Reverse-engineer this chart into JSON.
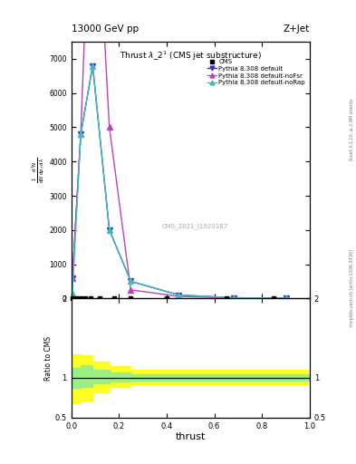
{
  "title_top": "13000 GeV pp",
  "title_right": "Z+Jet",
  "plot_title": "Thrust $\\lambda$_2$^1$ (CMS jet substructure)",
  "watermark": "CMS_2021_I1920187",
  "rivet_label": "Rivet 3.1.10, ≥ 2.8M events",
  "mcplots_label": "mcplots.cern.ch [arXiv:1306.3436]",
  "xlabel": "thrust",
  "ylabel_ratio": "Ratio to CMS",
  "cms_x": [
    0.005,
    0.02,
    0.04,
    0.06,
    0.08,
    0.12,
    0.18,
    0.25,
    0.4,
    0.65,
    0.85
  ],
  "pythia_default_x": [
    0.005,
    0.04,
    0.09,
    0.16,
    0.25,
    0.45,
    0.68,
    0.9
  ],
  "pythia_default_y": [
    600,
    4800,
    6800,
    2000,
    500,
    100,
    20,
    5
  ],
  "pythia_noFsr_x": [
    0.005,
    0.04,
    0.09,
    0.16,
    0.25,
    0.45,
    0.68,
    0.9
  ],
  "pythia_noFsr_y": [
    600,
    4800,
    14000,
    5000,
    250,
    60,
    10,
    2
  ],
  "pythia_noRap_x": [
    0.005,
    0.04,
    0.09,
    0.16,
    0.25,
    0.45,
    0.68,
    0.9
  ],
  "pythia_noRap_y": [
    150,
    4800,
    6800,
    2000,
    500,
    100,
    20,
    5
  ],
  "ylim_main": [
    0,
    7500
  ],
  "ylim_ratio": [
    0.5,
    2.0
  ],
  "xlim": [
    0.0,
    1.0
  ],
  "color_cms": "#000000",
  "color_default": "#3333cc",
  "color_noFsr": "#bb44bb",
  "color_noRap": "#44bbbb",
  "band_yellow_x": [
    0.0,
    0.04,
    0.09,
    0.16,
    0.25,
    0.45,
    0.65,
    1.0
  ],
  "band_yellow_lower": [
    0.68,
    0.72,
    0.82,
    0.88,
    0.92,
    0.92,
    0.92,
    0.92
  ],
  "band_yellow_upper": [
    1.3,
    1.28,
    1.2,
    1.15,
    1.1,
    1.1,
    1.1,
    1.1
  ],
  "band_green_x": [
    0.0,
    0.04,
    0.09,
    0.16,
    0.25,
    0.45,
    0.65,
    1.0
  ],
  "band_green_lower": [
    0.87,
    0.89,
    0.93,
    0.95,
    0.97,
    0.97,
    0.97,
    0.97
  ],
  "band_green_upper": [
    1.13,
    1.16,
    1.1,
    1.07,
    1.04,
    1.04,
    1.04,
    1.04
  ]
}
